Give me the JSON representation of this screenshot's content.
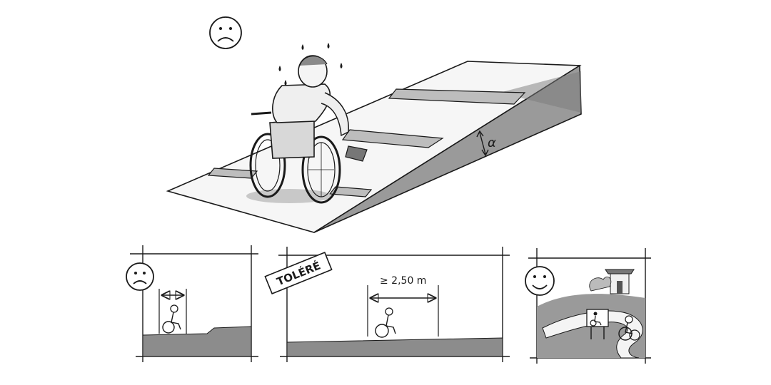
{
  "ramp_scene": {
    "mood": "sad",
    "angle_symbol": "α"
  },
  "panels": [
    {
      "mood": "sad"
    },
    {
      "stamp": "TOLÉRÉ",
      "width_label": "≥ 2,50 m"
    },
    {
      "mood": "happy"
    }
  ],
  "colors": {
    "ink": "#1a1a1a",
    "wash": "#8c8c8c",
    "wash_light": "#cfcfcf",
    "paper": "#ffffff"
  }
}
